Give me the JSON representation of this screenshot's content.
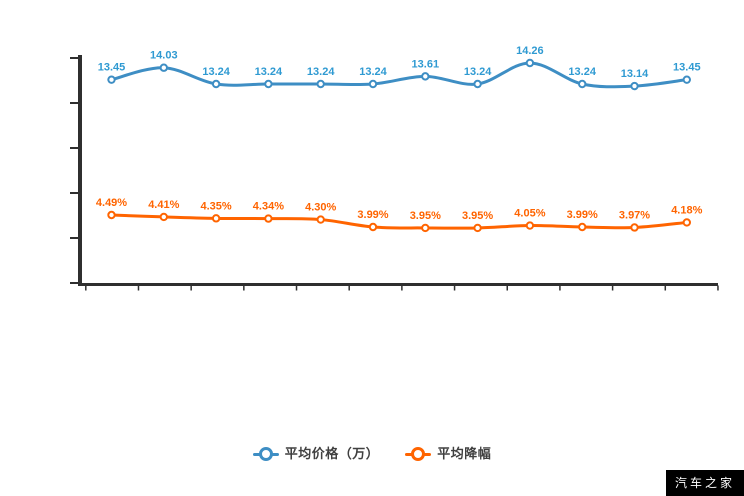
{
  "watermark": "汽车之家",
  "axis_color": "#2f2f2f",
  "chart_data": {
    "type": "line",
    "title": "",
    "xlabel": "",
    "ylabel": "",
    "x_count": 12,
    "categories": [
      "",
      "",
      "",
      "",
      "",
      "",
      "",
      "",
      "",
      "",
      "",
      ""
    ],
    "x_tick_labels_visible": false,
    "y_tick_labels_visible": false,
    "grid": false,
    "legend_position": "bottom",
    "series": [
      {
        "name": "平均价格（万）",
        "color": "#3e8ec4",
        "label_color": "#2f9ad2",
        "unit": "万",
        "values": [
          13.45,
          14.03,
          13.24,
          13.24,
          13.24,
          13.24,
          13.61,
          13.24,
          14.26,
          13.24,
          13.14,
          13.45
        ],
        "labels": [
          "13.45",
          "14.03",
          "13.24",
          "13.24",
          "13.24",
          "13.24",
          "13.61",
          "13.24",
          "14.26",
          "13.24",
          "13.14",
          "13.45"
        ]
      },
      {
        "name": "平均降幅",
        "color": "#ff6400",
        "label_color": "#ff6400",
        "unit": "%",
        "values": [
          4.49,
          4.41,
          4.35,
          4.34,
          4.3,
          3.99,
          3.95,
          3.95,
          4.05,
          3.99,
          3.97,
          4.18
        ],
        "labels": [
          "4.49%",
          "4.41%",
          "4.35%",
          "4.34%",
          "4.30%",
          "3.99%",
          "3.95%",
          "3.95%",
          "4.05%",
          "3.99%",
          "3.97%",
          "4.18%"
        ]
      }
    ]
  }
}
